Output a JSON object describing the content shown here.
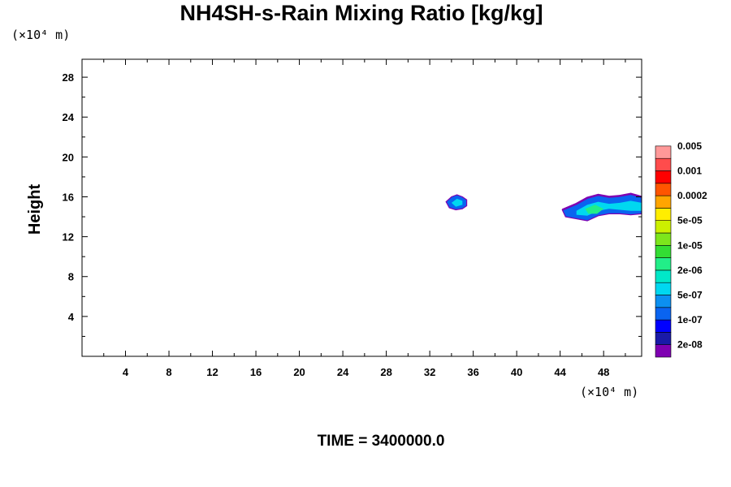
{
  "chart_data": {
    "type": "heatmap",
    "title": "NH4SH-s-Rain Mixing Ratio [kg/kg]",
    "ylabel": "Height",
    "x_unit_label": "(×10⁴ m)",
    "y_unit_label": "(×10⁴ m)",
    "footer": "TIME = 3400000.0",
    "xlim": [
      0,
      51.5
    ],
    "ylim": [
      0,
      29.8
    ],
    "x_ticks": [
      "4",
      "8",
      "12",
      "16",
      "20",
      "24",
      "28",
      "32",
      "36",
      "40",
      "44",
      "48"
    ],
    "x_tick_values": [
      4,
      8,
      12,
      16,
      20,
      24,
      28,
      32,
      36,
      40,
      44,
      48
    ],
    "y_ticks": [
      "4",
      "8",
      "12",
      "16",
      "20",
      "24",
      "28"
    ],
    "y_tick_values": [
      4,
      8,
      12,
      16,
      20,
      24,
      28
    ],
    "grid": false,
    "colorbar": {
      "colors": [
        "#7f00b2",
        "#1a1aa8",
        "#0000ff",
        "#0a64f0",
        "#0c90f0",
        "#00d8f0",
        "#00e8c8",
        "#22ee88",
        "#33dd33",
        "#7de61c",
        "#ccf000",
        "#ffee00",
        "#ffa500",
        "#ff5500",
        "#ff0000",
        "#ff4c4c",
        "#ff9999"
      ],
      "labels": [
        "2e-08",
        "1e-07",
        "5e-07",
        "2e-06",
        "1e-05",
        "5e-05",
        "0.0002",
        "0.001",
        "0.005"
      ]
    },
    "features": [
      {
        "name": "blob-small",
        "x": [
          33.5,
          34.0,
          34.5,
          35.0,
          35.4,
          35.4,
          35.0,
          34.4,
          33.8,
          33.5
        ],
        "y": [
          15.5,
          16.0,
          16.2,
          16.0,
          15.7,
          15.1,
          14.8,
          14.7,
          14.9,
          15.5
        ],
        "color": "#0a64f0",
        "inner": {
          "x": [
            34.0,
            34.5,
            35.0,
            35.0,
            34.4,
            34.0
          ],
          "y": [
            15.4,
            15.8,
            15.6,
            15.2,
            15.0,
            15.4
          ],
          "color": "#00d8f0"
        }
      },
      {
        "name": "blob-right",
        "x": [
          44.2,
          45.5,
          46.5,
          47.5,
          48.5,
          49.5,
          50.5,
          51.5,
          51.5,
          50.5,
          49.5,
          48.5,
          47.5,
          46.5,
          45.5,
          44.5,
          44.2
        ],
        "y": [
          14.7,
          15.3,
          15.9,
          16.2,
          16.0,
          16.1,
          16.3,
          16.0,
          14.3,
          14.2,
          14.3,
          14.3,
          14.1,
          13.6,
          13.8,
          14.0,
          14.7
        ],
        "color": "#0a64f0",
        "inner": {
          "x": [
            45.5,
            46.5,
            47.5,
            48.5,
            49.5,
            50.5,
            51.5,
            51.5,
            50.5,
            49.5,
            48.5,
            47.5,
            46.5,
            45.5
          ],
          "y": [
            14.6,
            15.2,
            15.5,
            15.3,
            15.4,
            15.6,
            15.4,
            14.6,
            14.6,
            14.7,
            14.8,
            14.6,
            14.1,
            14.2
          ],
          "color": "#00d8f0"
        },
        "core": {
          "x": [
            46.3,
            47.2,
            48.0,
            47.4,
            46.6
          ],
          "y": [
            14.8,
            15.2,
            14.8,
            14.3,
            14.3
          ],
          "color": "#22ee88"
        },
        "edge": {
          "x": [
            44.2,
            45.5,
            46.5,
            47.5,
            48.5,
            49.5,
            50.5,
            51.5
          ],
          "y": [
            14.7,
            15.3,
            15.9,
            16.2,
            16.0,
            16.1,
            16.3,
            16.0
          ],
          "color": "#7f00b2"
        }
      }
    ]
  }
}
